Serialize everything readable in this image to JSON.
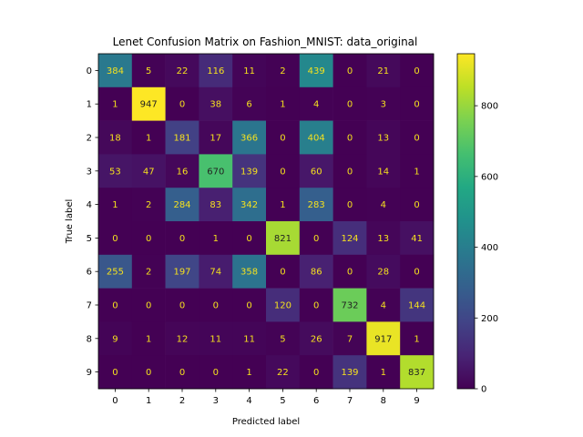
{
  "chart_data": {
    "type": "heatmap",
    "title": "Lenet Confusion Matrix on Fashion_MNIST: data_original",
    "xlabel": "Predicted label",
    "ylabel": "True label",
    "x_categories": [
      "0",
      "1",
      "2",
      "3",
      "4",
      "5",
      "6",
      "7",
      "8",
      "9"
    ],
    "y_categories": [
      "0",
      "1",
      "2",
      "3",
      "4",
      "5",
      "6",
      "7",
      "8",
      "9"
    ],
    "values": [
      [
        384,
        5,
        22,
        116,
        11,
        2,
        439,
        0,
        21,
        0
      ],
      [
        1,
        947,
        0,
        38,
        6,
        1,
        4,
        0,
        3,
        0
      ],
      [
        18,
        1,
        181,
        17,
        366,
        0,
        404,
        0,
        13,
        0
      ],
      [
        53,
        47,
        16,
        670,
        139,
        0,
        60,
        0,
        14,
        1
      ],
      [
        1,
        2,
        284,
        83,
        342,
        1,
        283,
        0,
        4,
        0
      ],
      [
        0,
        0,
        0,
        1,
        0,
        821,
        0,
        124,
        13,
        41
      ],
      [
        255,
        2,
        197,
        74,
        358,
        0,
        86,
        0,
        28,
        0
      ],
      [
        0,
        0,
        0,
        0,
        0,
        120,
        0,
        732,
        4,
        144
      ],
      [
        9,
        1,
        12,
        11,
        11,
        5,
        26,
        7,
        917,
        1
      ],
      [
        0,
        0,
        0,
        0,
        1,
        22,
        0,
        139,
        1,
        837
      ]
    ],
    "colormap": "viridis",
    "vmin": 0,
    "vmax": 947,
    "colorbar_ticks": [
      0,
      200,
      400,
      600,
      800
    ],
    "text_color_light": "#f5e11e",
    "text_color_dark": "#222222",
    "grid": false
  }
}
